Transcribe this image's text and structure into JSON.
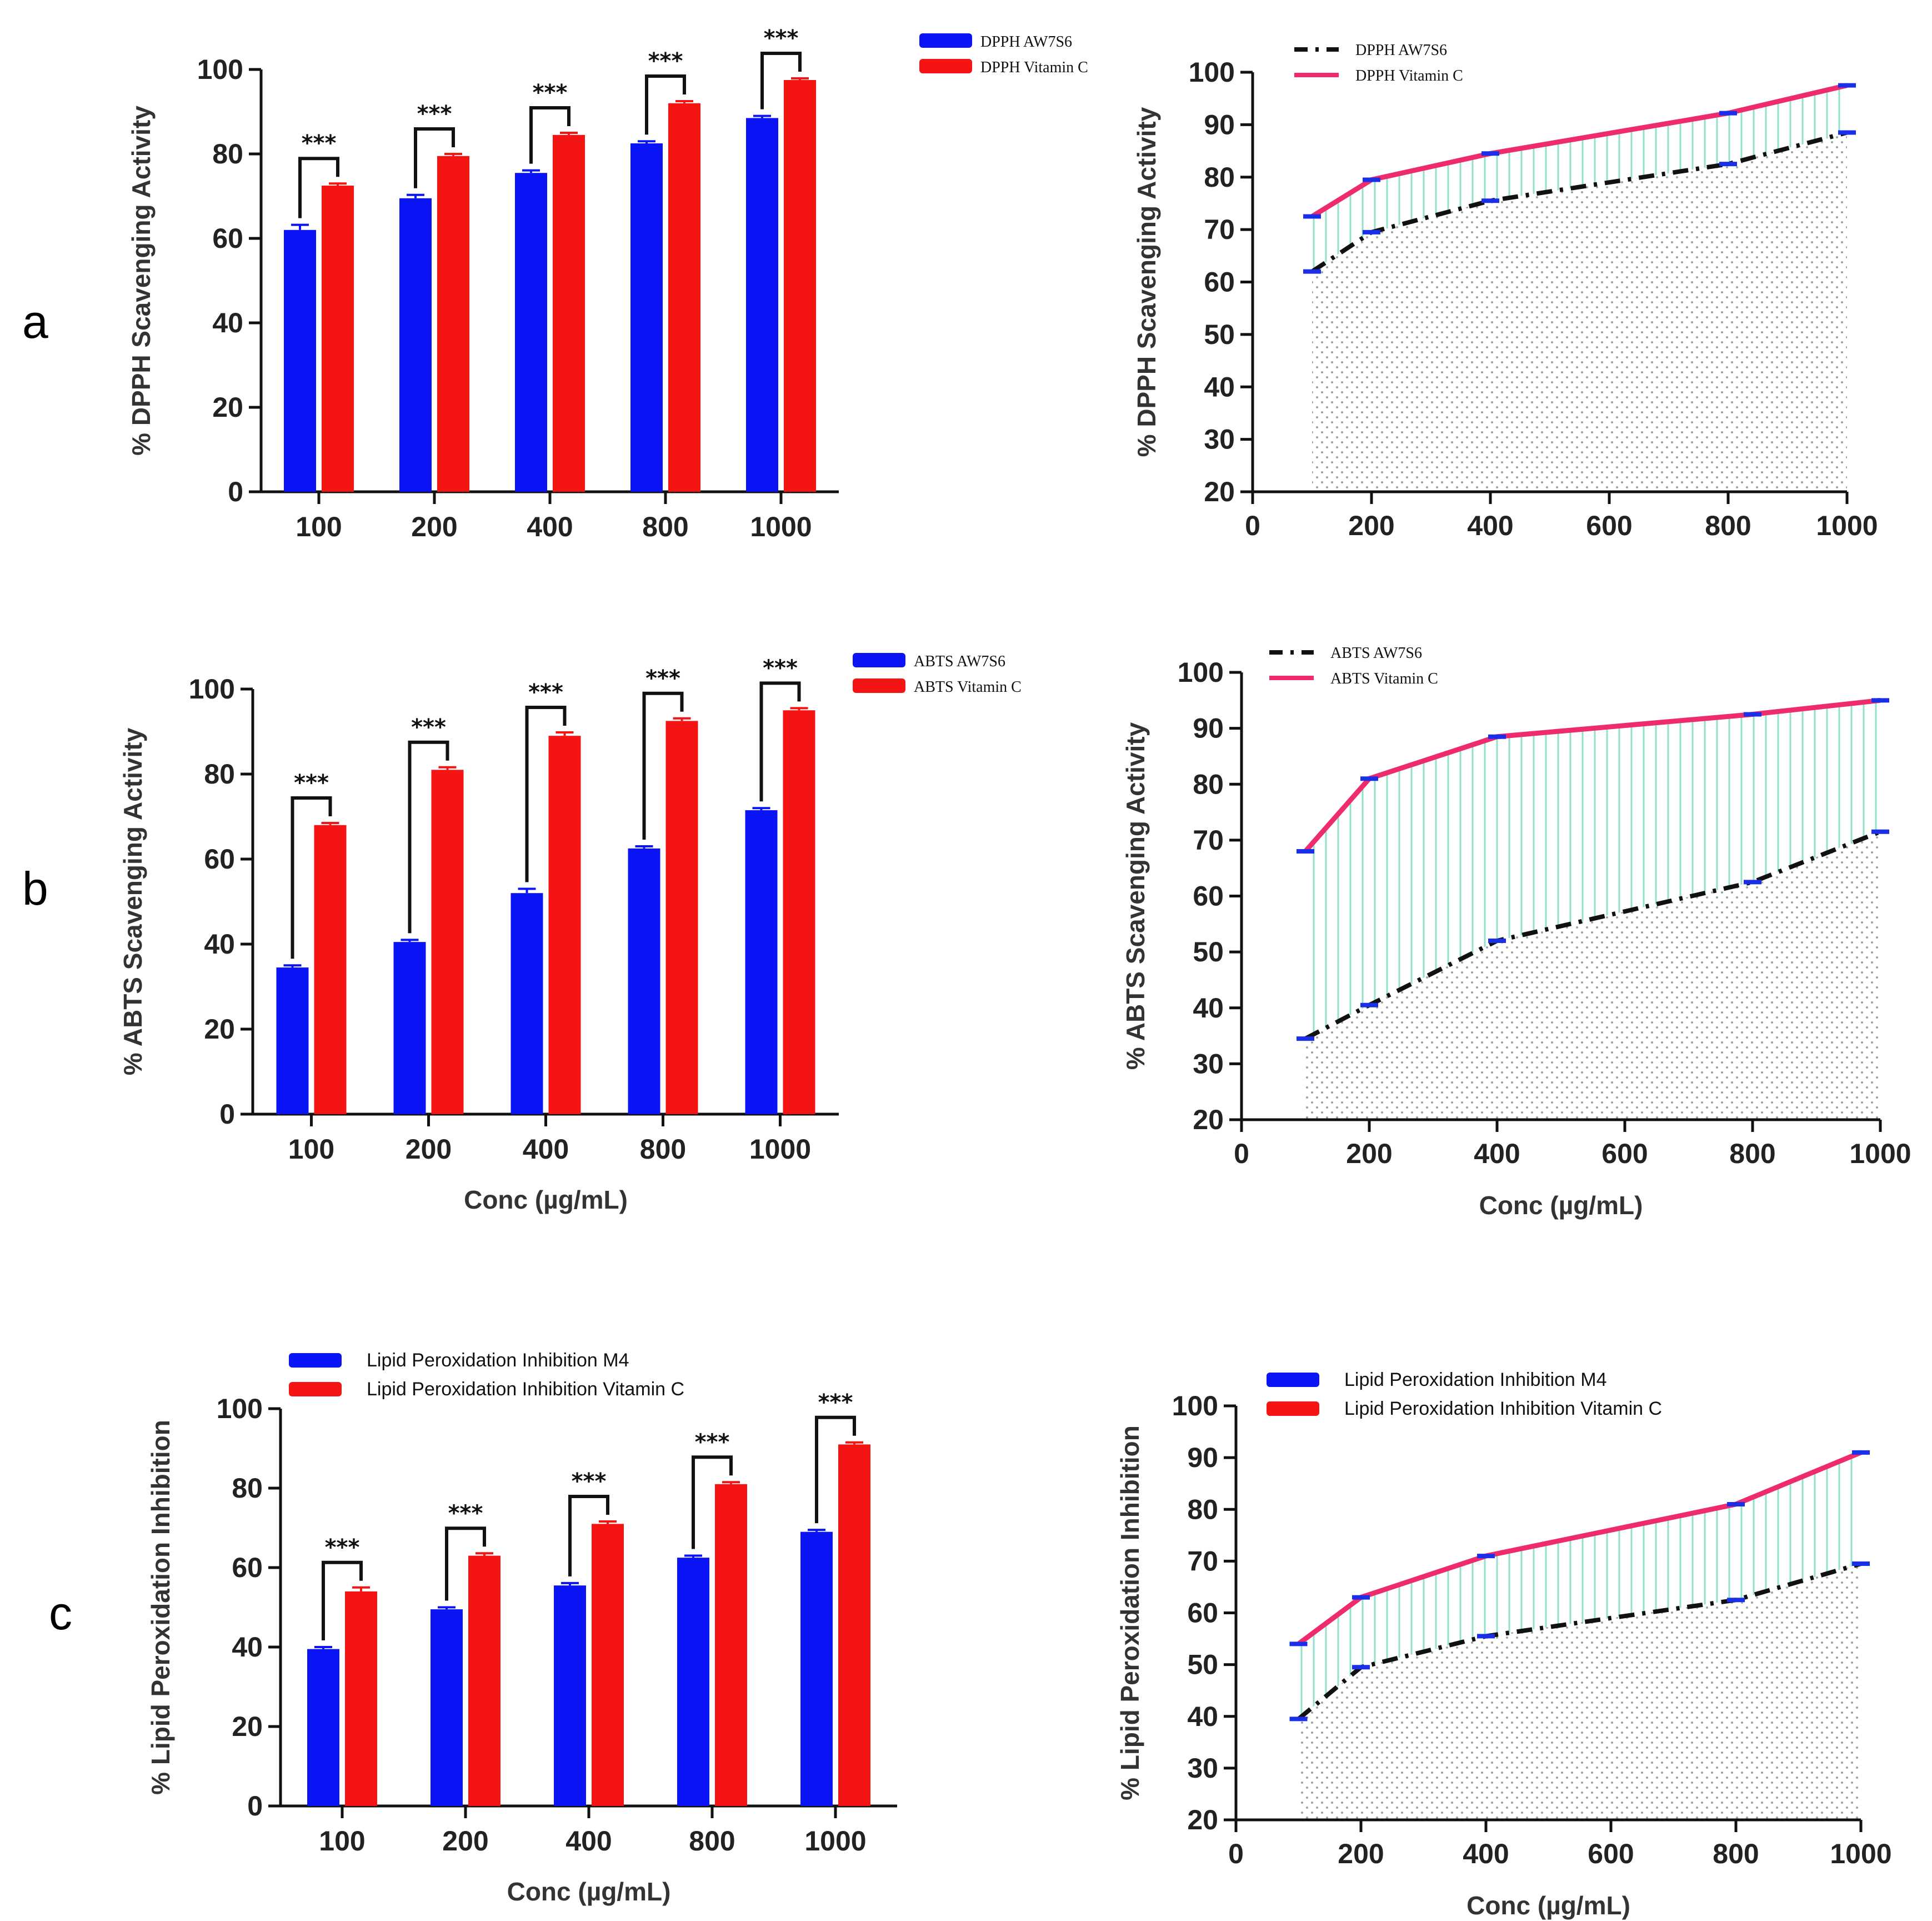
{
  "panel_labels": [
    "a",
    "b",
    "c"
  ],
  "chart_data": [
    {
      "id": "a-bar",
      "type": "bar",
      "categories": [
        "100",
        "200",
        "400",
        "800",
        "1000"
      ],
      "series": [
        {
          "name": "DPPH AW7S6",
          "values": [
            62,
            69.5,
            75.5,
            82.5,
            88.5
          ],
          "errors": [
            1.2,
            0.8,
            0.6,
            0.5,
            0.5
          ]
        },
        {
          "name": "DPPH Vitamin C",
          "values": [
            72.5,
            79.5,
            84.5,
            92,
            97.5
          ],
          "errors": [
            0.5,
            0.5,
            0.5,
            0.5,
            0.4
          ]
        }
      ],
      "ylabel": "% DPPH Scavenging Activity",
      "xlabel": "",
      "ylim": [
        0,
        100
      ],
      "yticks": [
        "0",
        "20",
        "40",
        "60",
        "80",
        "100"
      ],
      "significance": "***",
      "colors": [
        "#0a14f5",
        "#f51414"
      ],
      "legend": "right"
    },
    {
      "id": "a-line",
      "type": "line",
      "x": [
        100,
        200,
        400,
        800,
        1000
      ],
      "series": [
        {
          "name": "DPPH AW7S6",
          "values": [
            62,
            69.5,
            75.5,
            82.5,
            88.5
          ],
          "style": "dash-dot"
        },
        {
          "name": "DPPH Vitamin C",
          "values": [
            72.5,
            79.5,
            84.5,
            92.2,
            97.5
          ],
          "style": "solid"
        }
      ],
      "ylabel": "% DPPH Scavenging Activity",
      "xlabel": "",
      "xlim": [
        0,
        1000
      ],
      "ylim": [
        20,
        100
      ],
      "xticks": [
        "0",
        "200",
        "400",
        "600",
        "800",
        "1000"
      ],
      "yticks": [
        "20",
        "30",
        "40",
        "50",
        "60",
        "70",
        "80",
        "90",
        "100"
      ],
      "legend": "top-left"
    },
    {
      "id": "b-bar",
      "type": "bar",
      "categories": [
        "100",
        "200",
        "400",
        "800",
        "1000"
      ],
      "series": [
        {
          "name": "ABTS AW7S6",
          "values": [
            34.5,
            40.5,
            52,
            62.5,
            71.5
          ],
          "errors": [
            0.5,
            0.5,
            1,
            0.5,
            0.5
          ]
        },
        {
          "name": "ABTS Vitamin C",
          "values": [
            68,
            81,
            89,
            92.5,
            95
          ],
          "errors": [
            0.5,
            0.6,
            0.8,
            0.6,
            0.5
          ]
        }
      ],
      "ylabel": "% ABTS Scavenging Activity",
      "xlabel": "Conc (µg/mL)",
      "ylim": [
        0,
        100
      ],
      "yticks": [
        "0",
        "20",
        "40",
        "60",
        "80",
        "100"
      ],
      "significance": "***",
      "colors": [
        "#0a14f5",
        "#f51414"
      ],
      "legend": "right"
    },
    {
      "id": "b-line",
      "type": "line",
      "x": [
        100,
        200,
        400,
        800,
        1000
      ],
      "series": [
        {
          "name": "ABTS AW7S6",
          "values": [
            34.5,
            40.5,
            52,
            62.5,
            71.5
          ],
          "style": "dash-dot"
        },
        {
          "name": "ABTS Vitamin C",
          "values": [
            68,
            81,
            88.5,
            92.5,
            95
          ],
          "style": "solid"
        }
      ],
      "ylabel": "% ABTS Scavenging Activity",
      "xlabel": "Conc (µg/mL)",
      "xlim": [
        0,
        1000
      ],
      "ylim": [
        20,
        100
      ],
      "xticks": [
        "0",
        "200",
        "400",
        "600",
        "800",
        "1000"
      ],
      "yticks": [
        "20",
        "30",
        "40",
        "50",
        "60",
        "70",
        "80",
        "90",
        "100"
      ],
      "legend": "top-left"
    },
    {
      "id": "c-bar",
      "type": "bar",
      "categories": [
        "100",
        "200",
        "400",
        "800",
        "1000"
      ],
      "series": [
        {
          "name": "Lipid Peroxidation Inhibition M4",
          "values": [
            39.5,
            49.5,
            55.5,
            62.5,
            69
          ],
          "errors": [
            0.5,
            0.5,
            0.6,
            0.5,
            0.5
          ]
        },
        {
          "name": "Lipid Peroxidation Inhibition Vitamin C",
          "values": [
            54,
            63,
            71,
            81,
            91
          ],
          "errors": [
            1,
            0.6,
            0.6,
            0.5,
            0.5
          ]
        }
      ],
      "ylabel": "% Lipid Peroxidation Inhibition",
      "xlabel": "Conc (µg/mL)",
      "ylim": [
        0,
        100
      ],
      "yticks": [
        "0",
        "20",
        "40",
        "60",
        "80",
        "100"
      ],
      "significance": "***",
      "colors": [
        "#0a14f5",
        "#f51414"
      ],
      "legend": "top-left"
    },
    {
      "id": "c-line",
      "type": "line",
      "x": [
        100,
        200,
        400,
        800,
        1000
      ],
      "series": [
        {
          "name": "Lipid Peroxidation Inhibition M4",
          "values": [
            39.5,
            49.5,
            55.5,
            62.5,
            69.5
          ],
          "style": "dash-dot"
        },
        {
          "name": "Lipid Peroxidation Inhibition Vitamin C",
          "values": [
            54,
            63,
            71,
            81,
            91
          ],
          "style": "solid"
        }
      ],
      "ylabel": "% Lipid Peroxidation Inhibition",
      "xlabel": "Conc (µg/mL)",
      "xlim": [
        0,
        1000
      ],
      "ylim": [
        20,
        100
      ],
      "xticks": [
        "0",
        "200",
        "400",
        "600",
        "800",
        "1000"
      ],
      "yticks": [
        "20",
        "30",
        "40",
        "50",
        "60",
        "70",
        "80",
        "90",
        "100"
      ],
      "legend": "top-left"
    }
  ]
}
